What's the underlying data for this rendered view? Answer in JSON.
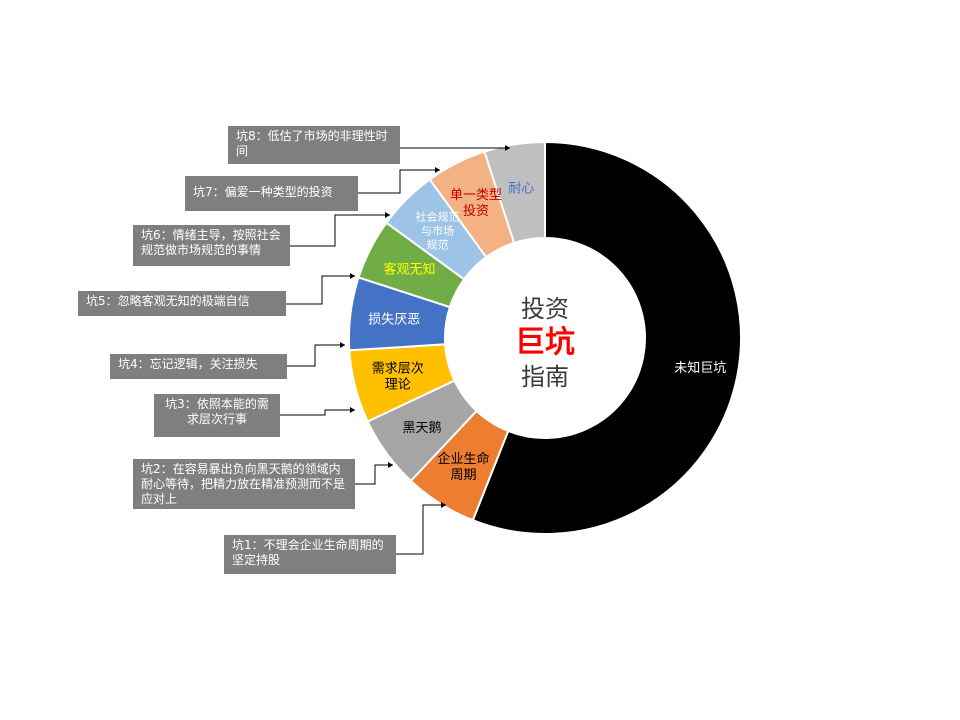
{
  "chart_data": {
    "type": "pie",
    "variant": "doughnut",
    "center_title": {
      "line1": "投资",
      "line2": "巨坑",
      "line3": "指南"
    },
    "slices": [
      {
        "label": "未知巨坑",
        "value": 56,
        "color": "#000000",
        "label_color": "#ffffff"
      },
      {
        "label": "企业生命周期",
        "value": 6,
        "color": "#ed7d31",
        "label_color": "#000000"
      },
      {
        "label": "黑天鹅",
        "value": 6,
        "color": "#a5a5a5",
        "label_color": "#000000"
      },
      {
        "label": "需求层次理论",
        "value": 6,
        "color": "#ffc000",
        "label_color": "#000000"
      },
      {
        "label": "损失厌恶",
        "value": 6,
        "color": "#4472c4",
        "label_color": "#ffffff"
      },
      {
        "label": "客观无知",
        "value": 5,
        "color": "#70ad47",
        "label_color": "#ffff00"
      },
      {
        "label": "社会规范与市场规范",
        "value": 5,
        "color": "#9dc3e6",
        "label_color": "#ffffff"
      },
      {
        "label": "单一类型投资",
        "value": 5,
        "color": "#f4b183",
        "label_color": "#c00000"
      },
      {
        "label": "耐心",
        "value": 5,
        "color": "#bfbfbf",
        "label_color": "#4472c4"
      }
    ]
  },
  "callouts": [
    {
      "title": "坑1",
      "text": "不理会企业生命周期的坚定持股"
    },
    {
      "title": "坑2",
      "text": "在容易暴出负向黑天鹅的领域内耐心等待，把精力放在精准预测而不是应对上"
    },
    {
      "title": "坑3",
      "text": "依照本能的需求层次行事"
    },
    {
      "title": "坑4",
      "text": "忘记逻辑，关注损失"
    },
    {
      "title": "坑5",
      "text": "忽略客观无知的极端自信"
    },
    {
      "title": "坑6",
      "text": "情绪主导，按照社会规范做市场规范的事情"
    },
    {
      "title": "坑7",
      "text": "偏爱一种类型的投资"
    },
    {
      "title": "坑8",
      "text": "低估了市场的非理性时间"
    }
  ]
}
